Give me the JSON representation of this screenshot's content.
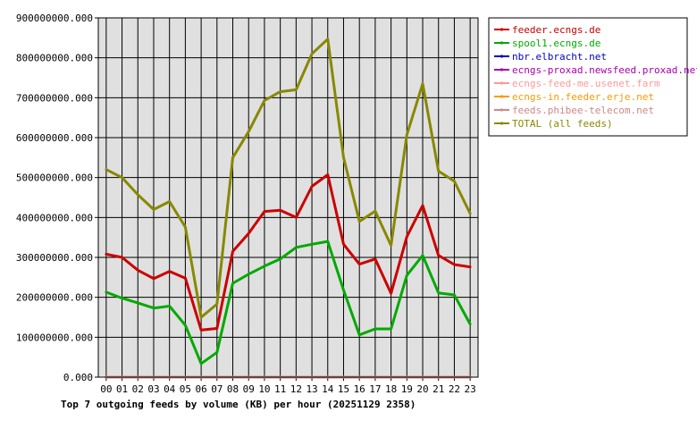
{
  "chart_data": {
    "type": "line",
    "title": "Top 7 outgoing feeds by volume (KB) per hour (20251129 2358)",
    "xlabel": "",
    "ylabel": "",
    "x": [
      "00",
      "01",
      "02",
      "03",
      "04",
      "05",
      "06",
      "07",
      "08",
      "09",
      "10",
      "11",
      "12",
      "13",
      "14",
      "15",
      "16",
      "17",
      "18",
      "19",
      "20",
      "21",
      "22",
      "23"
    ],
    "ylim": [
      0,
      900000000
    ],
    "yticks": [
      "0.000",
      "100000000.000",
      "200000000.000",
      "300000000.000",
      "400000000.000",
      "500000000.000",
      "600000000.000",
      "700000000.000",
      "800000000.000",
      "900000000.000"
    ],
    "grid": true,
    "legend_position": "right",
    "series": [
      {
        "name": "feeder.ecngs.de",
        "color": "#cc0000",
        "values": [
          308000000,
          300000000,
          268000000,
          247000000,
          265000000,
          248000000,
          118000000,
          122000000,
          315000000,
          360000000,
          415000000,
          418000000,
          400000000,
          478000000,
          507000000,
          333000000,
          283000000,
          296000000,
          210000000,
          352000000,
          430000000,
          305000000,
          282000000,
          276000000
        ]
      },
      {
        "name": "spool1.ecngs.de",
        "color": "#00aa00",
        "values": [
          213000000,
          198000000,
          186000000,
          173000000,
          178000000,
          130000000,
          34000000,
          62000000,
          235000000,
          258000000,
          278000000,
          296000000,
          325000000,
          333000000,
          340000000,
          218000000,
          106000000,
          121000000,
          121000000,
          255000000,
          305000000,
          211000000,
          206000000,
          133000000
        ]
      },
      {
        "name": "nbr.elbracht.net",
        "color": "#0000cc",
        "values": [
          500,
          500,
          500,
          500,
          500,
          500,
          500,
          500,
          500,
          500,
          500,
          500,
          500,
          500,
          500,
          500,
          500,
          500,
          500,
          500,
          500,
          500,
          500,
          500
        ]
      },
      {
        "name": "ecngs-proxad.newsfeed.proxad.net",
        "color": "#aa00aa",
        "values": [
          600,
          600,
          600,
          600,
          600,
          600,
          600,
          600,
          600,
          600,
          600,
          600,
          600,
          600,
          600,
          600,
          600,
          600,
          600,
          600,
          600,
          600,
          600,
          600
        ]
      },
      {
        "name": "ecngs-feed-me.usenet.farm",
        "color": "#ff9999",
        "values": [
          700,
          700,
          700,
          700,
          700,
          700,
          700,
          700,
          700,
          700,
          700,
          700,
          700,
          700,
          700,
          700,
          700,
          700,
          700,
          700,
          700,
          700,
          700,
          700
        ]
      },
      {
        "name": "ecngs-in.feeder.erje.net",
        "color": "#ff9900",
        "values": [
          800,
          800,
          800,
          800,
          800,
          800,
          800,
          800,
          800,
          800,
          800,
          800,
          800,
          800,
          800,
          800,
          800,
          800,
          800,
          800,
          800,
          800,
          800,
          800
        ]
      },
      {
        "name": "feeds.phibee-telecom.net",
        "color": "#cc8888",
        "values": [
          900,
          900,
          900,
          900,
          900,
          900,
          900,
          900,
          900,
          900,
          900,
          900,
          900,
          900,
          900,
          900,
          900,
          900,
          900,
          900,
          900,
          900,
          900,
          900
        ]
      },
      {
        "name": "TOTAL (all feeds)",
        "color": "#888800",
        "values": [
          520000000,
          500000000,
          457000000,
          420000000,
          440000000,
          376000000,
          150000000,
          183000000,
          550000000,
          615000000,
          693000000,
          715000000,
          720000000,
          810000000,
          847000000,
          550000000,
          390000000,
          416000000,
          330000000,
          607000000,
          735000000,
          516000000,
          491000000,
          410000000
        ]
      }
    ]
  }
}
